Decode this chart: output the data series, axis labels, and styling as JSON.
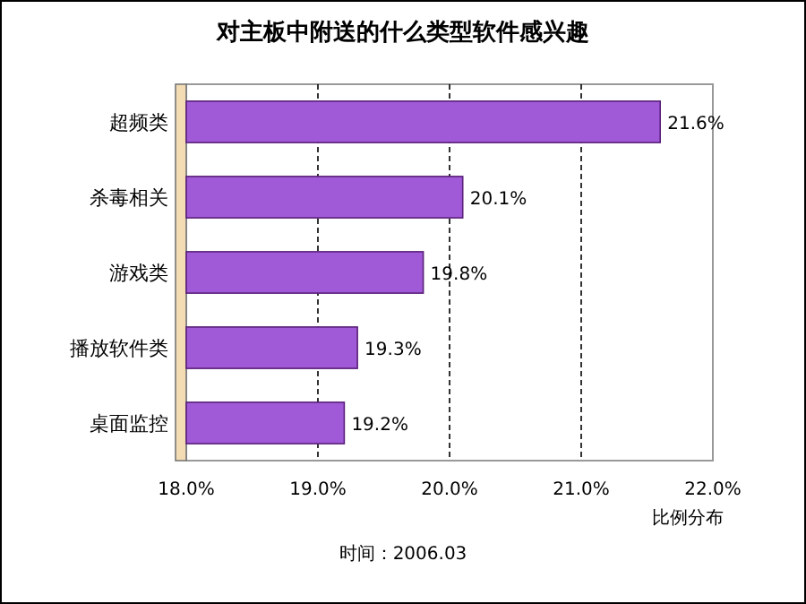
{
  "chart_data": {
    "type": "bar",
    "orientation": "horizontal",
    "title": "对主板中附送的什么类型软件感兴趣",
    "xlabel": "比例分布",
    "categories": [
      "超频类",
      "杀毒相关",
      "游戏类",
      "播放软件类",
      "桌面监控"
    ],
    "values": [
      21.6,
      20.1,
      19.8,
      19.3,
      19.2
    ],
    "value_labels": [
      "21.6%",
      "20.1%",
      "19.8%",
      "19.3%",
      "19.2%"
    ],
    "color": "#a05ad8",
    "xlim": [
      18,
      22
    ],
    "xticks": [
      {
        "value": 18,
        "label": "18.0%"
      },
      {
        "value": 19,
        "label": "19.0%"
      },
      {
        "value": 20,
        "label": "20.0%"
      },
      {
        "value": 21,
        "label": "21.0%"
      },
      {
        "value": 22,
        "label": "22.0%"
      }
    ],
    "grid": "x",
    "annotations": [
      "时间：2006.03"
    ]
  }
}
